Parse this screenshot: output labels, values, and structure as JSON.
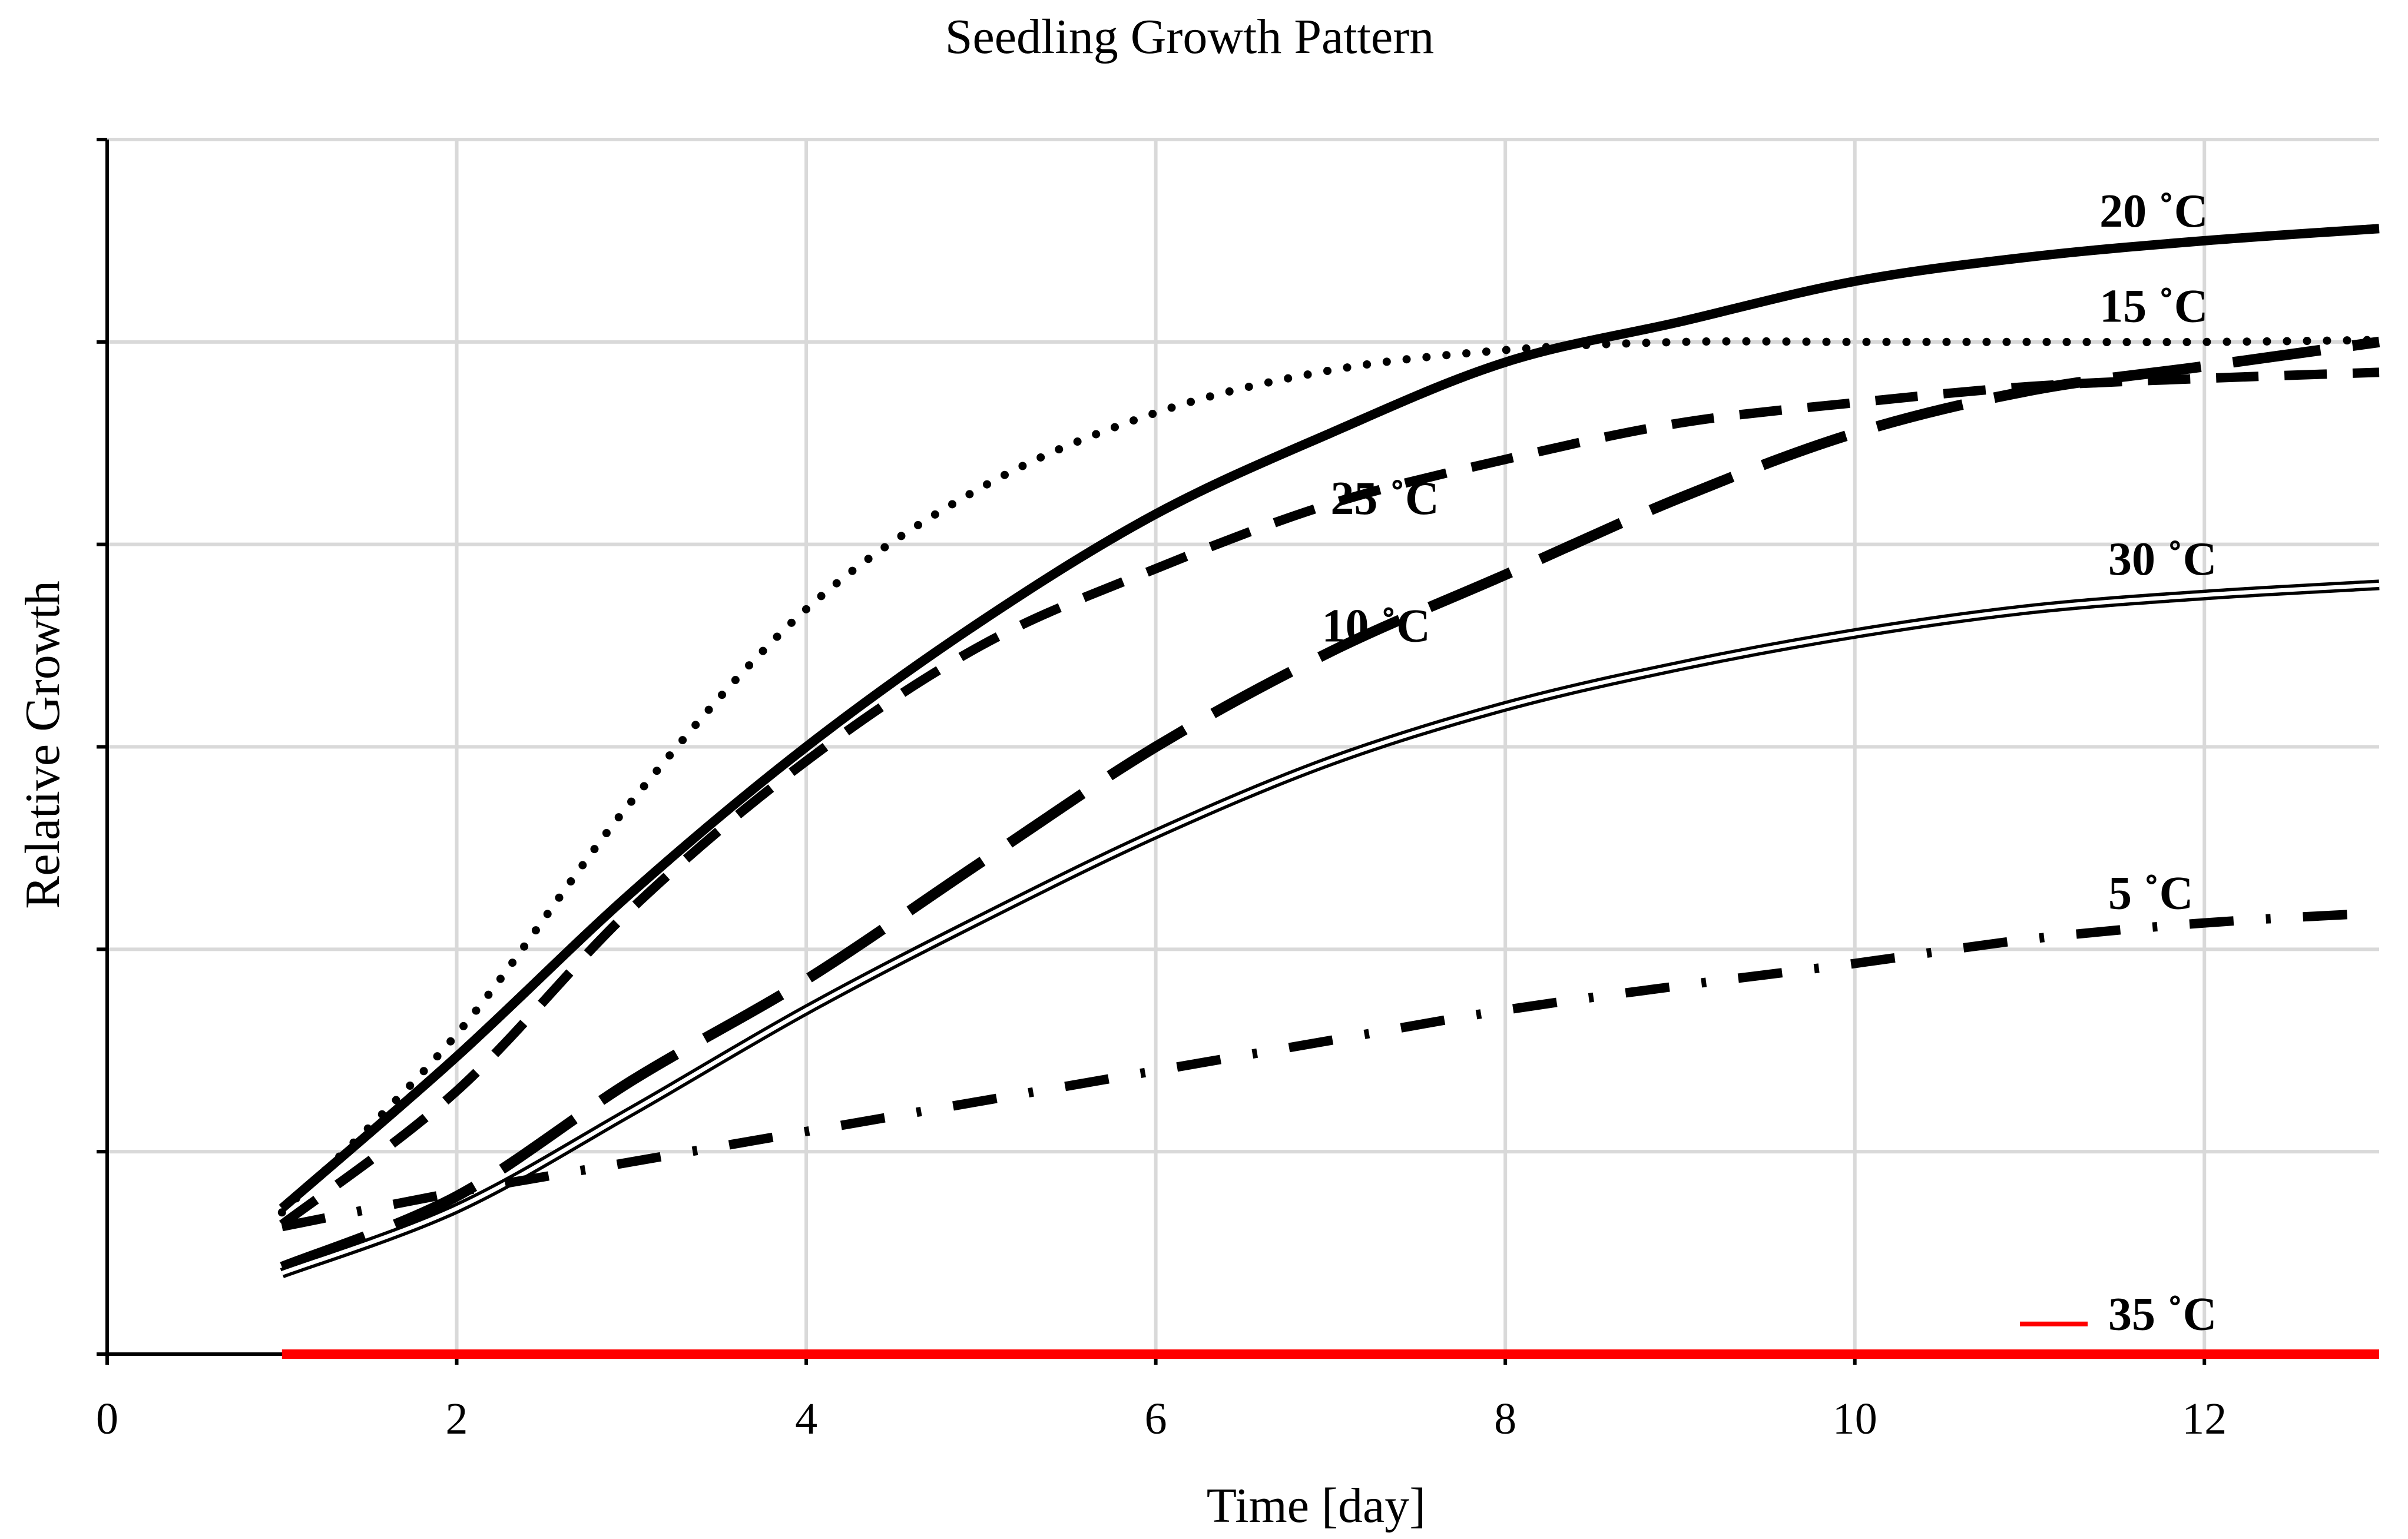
{
  "chart_data": {
    "type": "line",
    "title": "Seedling Growth Pattern",
    "xlabel": "Time [day]",
    "ylabel": "Relative Growth",
    "xlim": [
      0,
      13
    ],
    "ylim": [
      0,
      6
    ],
    "x_ticks": [
      0,
      2,
      4,
      6,
      8,
      10,
      12
    ],
    "y_gridlines": [
      1,
      2,
      3,
      4,
      5,
      6
    ],
    "grid": true,
    "legend": "inline labels",
    "colors": {
      "default": "#000000",
      "highlight": "#ff0000",
      "grid": "#d9d9d9"
    },
    "series": [
      {
        "name": "20 ˚C",
        "label": "20 ˚C",
        "style": "solid",
        "x": [
          1,
          2,
          3,
          4,
          5,
          6,
          7,
          8,
          9,
          10,
          11,
          12,
          13
        ],
        "y": [
          0.72,
          1.47,
          2.28,
          3.0,
          3.62,
          4.15,
          4.55,
          4.9,
          5.1,
          5.3,
          5.42,
          5.5,
          5.56
        ],
        "label_at": [
          11.4,
          5.57
        ]
      },
      {
        "name": "15 ˚C",
        "label": "15 ˚C",
        "style": "dotted",
        "x": [
          1,
          2,
          3,
          4,
          5,
          6,
          7,
          8,
          9,
          10,
          11,
          12,
          13
        ],
        "y": [
          0.7,
          1.58,
          2.73,
          3.68,
          4.28,
          4.65,
          4.86,
          4.96,
          5.0,
          5.0,
          5.0,
          5.0,
          5.01
        ],
        "label_at": [
          11.4,
          5.1
        ]
      },
      {
        "name": "25 ˚C",
        "label": "25 ˚C",
        "style": "dashed",
        "x": [
          1,
          2,
          3,
          4,
          5,
          6,
          7,
          8,
          9,
          10,
          11,
          12,
          13
        ],
        "y": [
          0.64,
          1.3,
          2.2,
          2.93,
          3.5,
          3.88,
          4.2,
          4.42,
          4.6,
          4.7,
          4.78,
          4.82,
          4.85
        ],
        "label_at": [
          7.0,
          4.15
        ]
      },
      {
        "name": "10 ˚C",
        "label": "10 ˚C",
        "style": "long-dash",
        "x": [
          1,
          2,
          3,
          4,
          5,
          6,
          7,
          8,
          9,
          10,
          11,
          12,
          13
        ],
        "y": [
          0.43,
          0.78,
          1.35,
          1.85,
          2.43,
          3.0,
          3.47,
          3.85,
          4.23,
          4.55,
          4.76,
          4.88,
          5.0
        ],
        "label_at": [
          6.95,
          3.52
        ]
      },
      {
        "name": "30 ˚C",
        "label": "30 ˚C",
        "style": "double",
        "x": [
          1,
          2,
          3,
          4,
          5,
          6,
          7,
          8,
          9,
          10,
          11,
          12,
          13
        ],
        "y": [
          0.4,
          0.72,
          1.2,
          1.7,
          2.15,
          2.57,
          2.93,
          3.2,
          3.4,
          3.56,
          3.68,
          3.75,
          3.8
        ],
        "label_at": [
          11.45,
          3.85
        ]
      },
      {
        "name": "5 ˚C",
        "label": "5 ˚C",
        "style": "dash-dot",
        "x": [
          1,
          2,
          3,
          4,
          5,
          6,
          7,
          8,
          9,
          10,
          11,
          12,
          13
        ],
        "y": [
          0.63,
          0.8,
          0.95,
          1.1,
          1.25,
          1.4,
          1.55,
          1.7,
          1.82,
          1.93,
          2.05,
          2.13,
          2.18
        ],
        "label_at": [
          11.45,
          2.2
        ]
      },
      {
        "name": "35 ˚C",
        "label": "35 ˚C",
        "style": "solid-red",
        "x": [
          1,
          13
        ],
        "y": [
          0.0,
          0.0
        ],
        "label_at": [
          11.45,
          0.12
        ]
      }
    ]
  }
}
